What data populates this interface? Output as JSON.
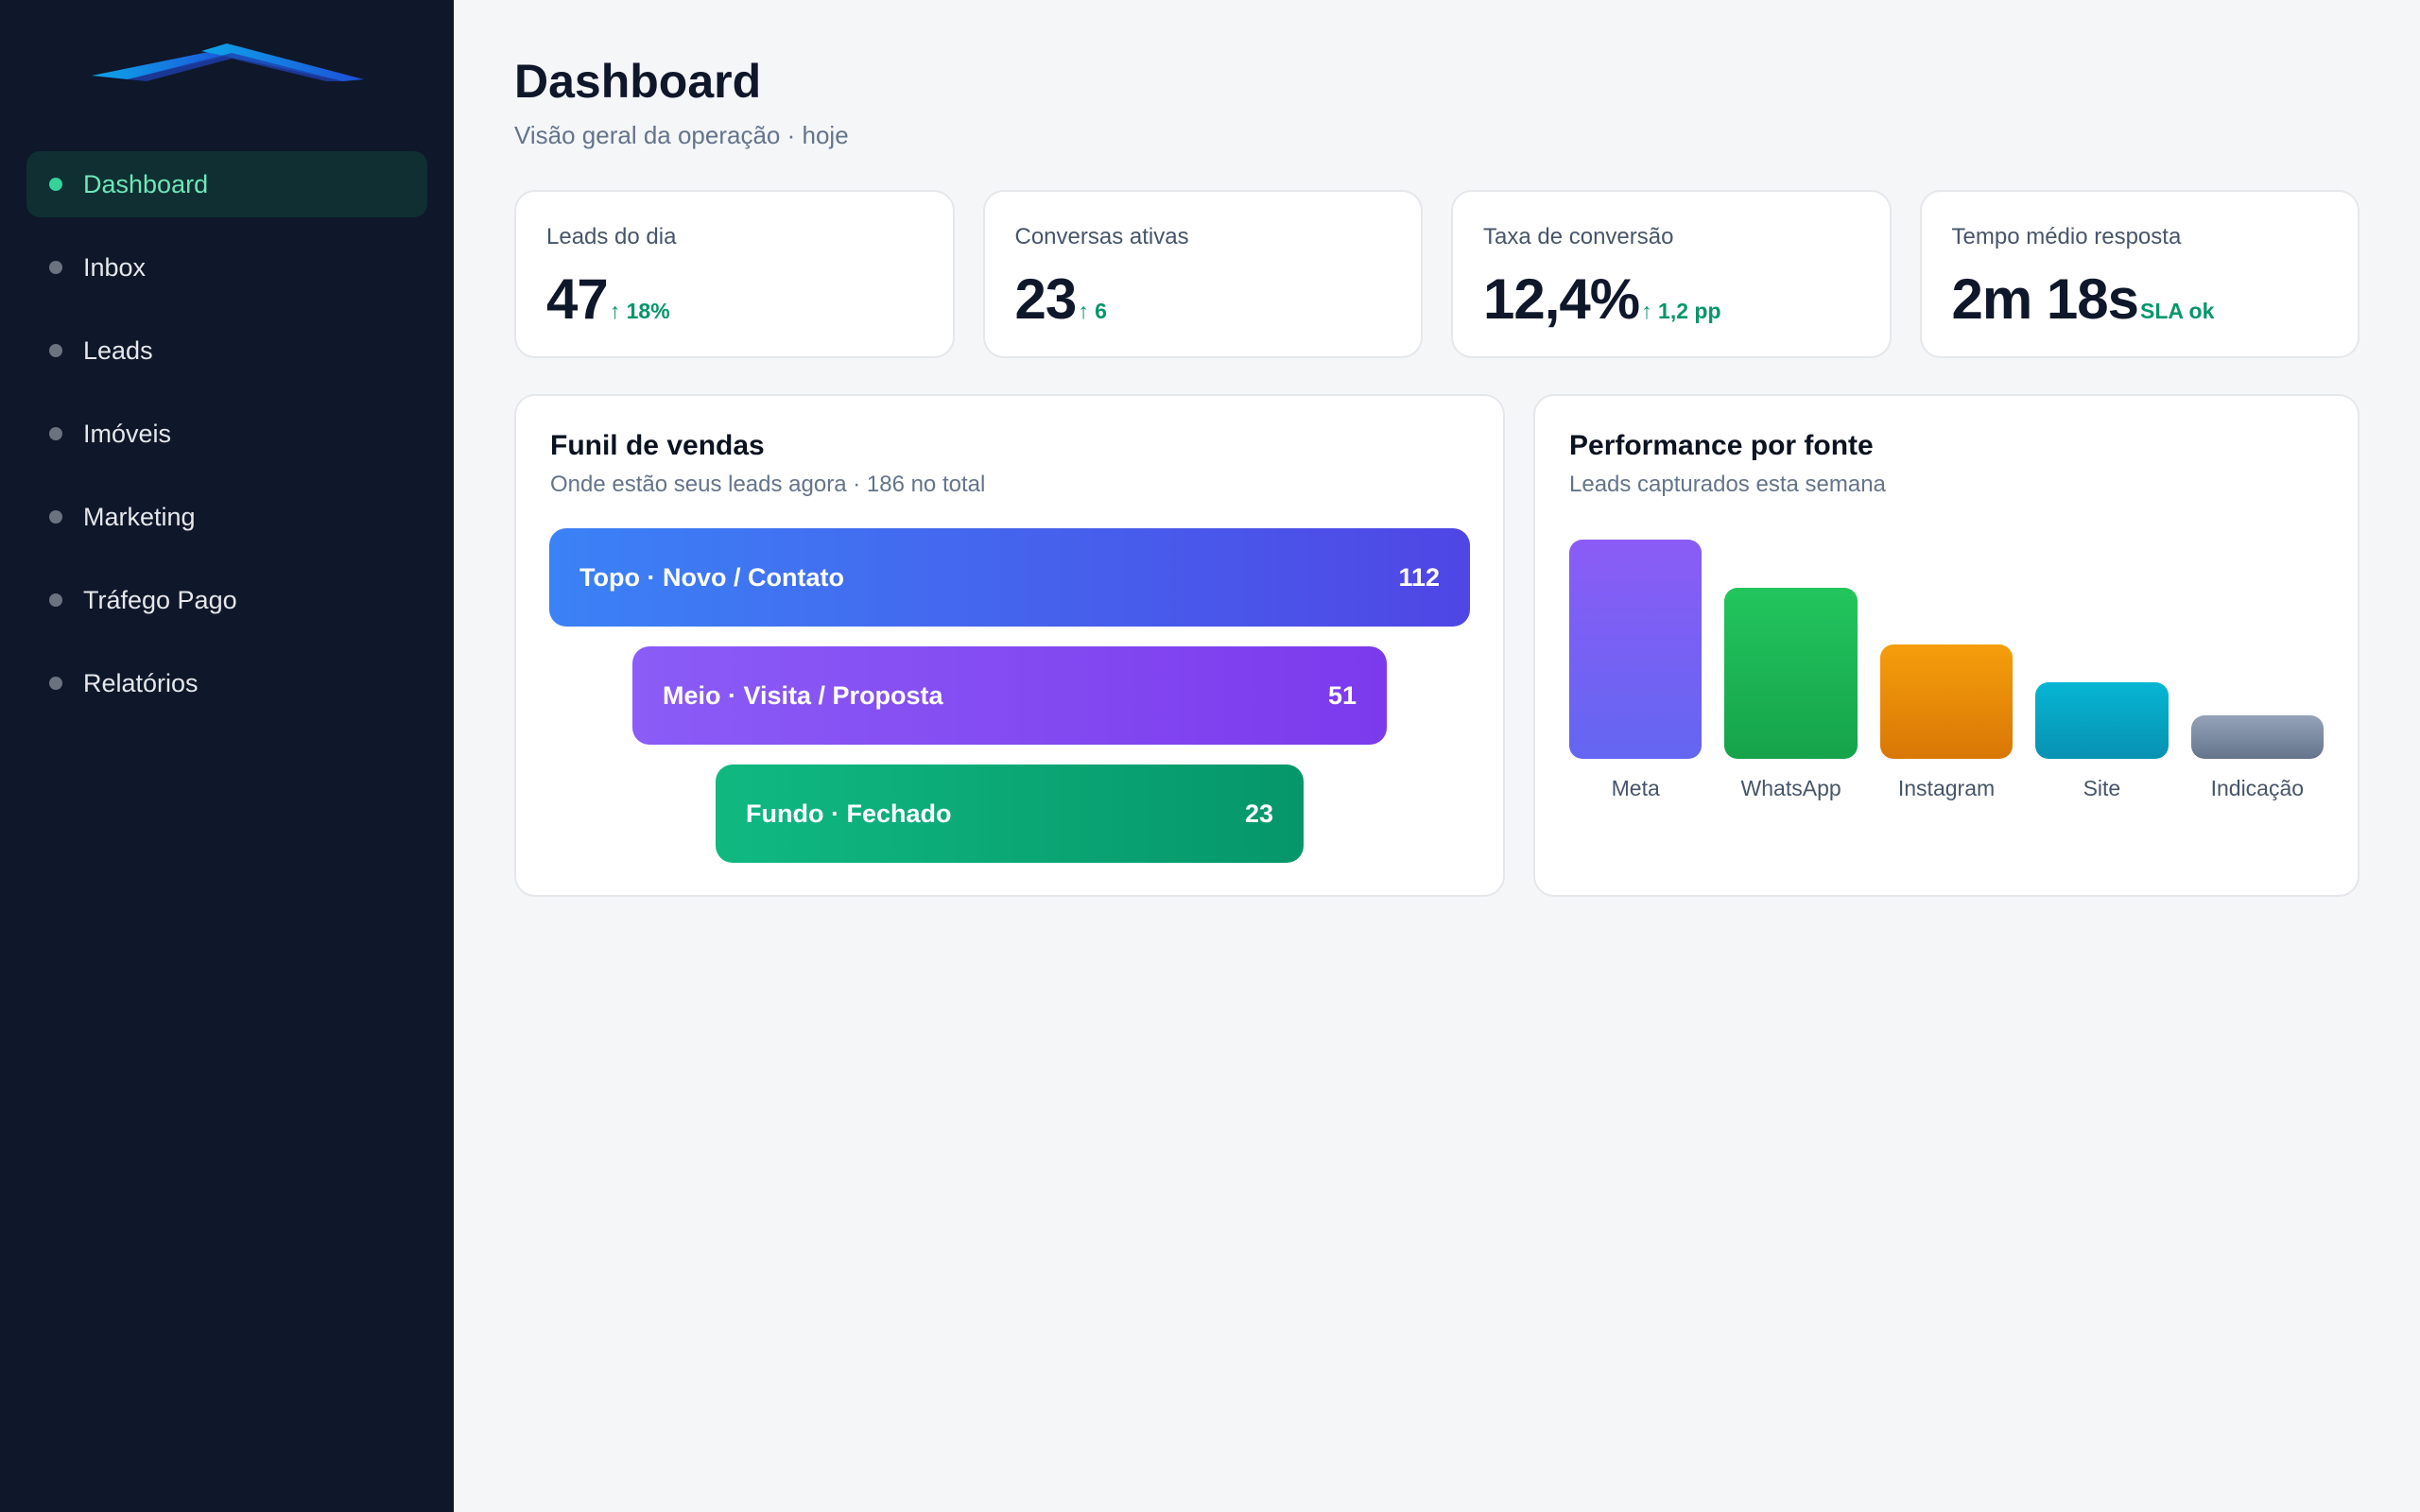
{
  "sidebar": {
    "items": [
      {
        "label": "Dashboard",
        "active": true
      },
      {
        "label": "Inbox",
        "active": false
      },
      {
        "label": "Leads",
        "active": false
      },
      {
        "label": "Imóveis",
        "active": false
      },
      {
        "label": "Marketing",
        "active": false
      },
      {
        "label": "Tráfego Pago",
        "active": false
      },
      {
        "label": "Relatórios",
        "active": false
      }
    ]
  },
  "header": {
    "title": "Dashboard",
    "subtitle": "Visão geral da operação · hoje"
  },
  "kpis": [
    {
      "label": "Leads do dia",
      "value": "47",
      "delta": "↑ 18%"
    },
    {
      "label": "Conversas ativas",
      "value": "23",
      "delta": "↑ 6"
    },
    {
      "label": "Taxa de conversão",
      "value": "12,4%",
      "delta": "↑ 1,2 pp"
    },
    {
      "label": "Tempo médio resposta",
      "value": "2m 18s",
      "delta": "SLA ok"
    }
  ],
  "funnel": {
    "title": "Funil de vendas",
    "subtitle": "Onde estão seus leads agora · 186 no total",
    "stages": [
      {
        "label": "Topo · Novo / Contato",
        "value": "112"
      },
      {
        "label": "Meio · Visita / Proposta",
        "value": "51"
      },
      {
        "label": "Fundo · Fechado",
        "value": "23"
      }
    ]
  },
  "performance": {
    "title": "Performance por fonte",
    "subtitle": "Leads capturados esta semana"
  },
  "chart_data": {
    "type": "bar",
    "categories": [
      "Meta",
      "WhatsApp",
      "Instagram",
      "Site",
      "Indicação"
    ],
    "values": [
      100,
      78,
      52,
      35,
      20
    ],
    "ylim": [
      0,
      100
    ],
    "colors": [
      [
        "#8b5cf6",
        "#6366f1"
      ],
      [
        "#22c55e",
        "#16a34a"
      ],
      [
        "#f59e0b",
        "#d97706"
      ],
      [
        "#06b6d4",
        "#0891b2"
      ],
      [
        "#94a3b8",
        "#64748b"
      ]
    ]
  }
}
